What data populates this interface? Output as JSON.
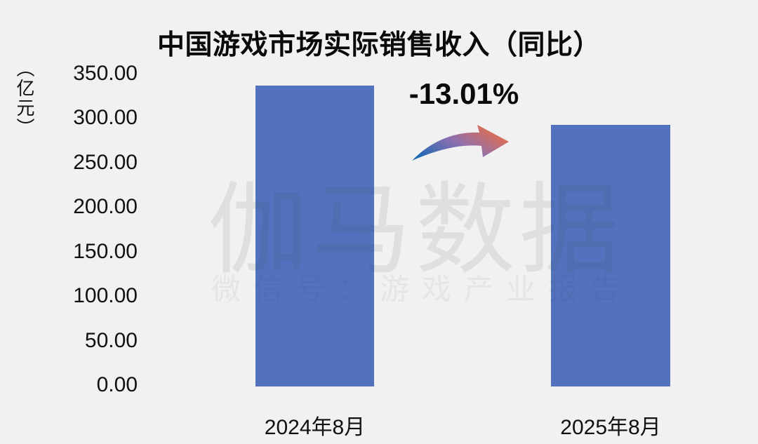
{
  "title": "中国游戏市场实际销售收入（同比）",
  "annotation": {
    "change_label": "-13.01%",
    "arrow_description": "curved swoosh arrow pointing down-right",
    "arrow_gradient": [
      "#1A69B4",
      "#8E6FB0",
      "#EE6E3E"
    ]
  },
  "watermark": {
    "brand": "伽马数据",
    "subtitle": "微信号：游戏产业报告"
  },
  "chart_data": {
    "type": "bar",
    "title": "中国游戏市场实际销售收入（同比）",
    "categories": [
      "2024年8月",
      "2025年8月"
    ],
    "values": [
      336.6,
      292.8
    ],
    "yoy_change_pct": "-13.01%",
    "ylabel": "（亿元）",
    "ylim": [
      0,
      350
    ],
    "ytick_step": 50,
    "yticks": [
      "350.00",
      "300.00",
      "250.00",
      "200.00",
      "150.00",
      "100.00",
      "50.00",
      "0.00"
    ],
    "bar_color": "#5272BD",
    "background_color": "#F1F1F2",
    "grid": false,
    "legend": false,
    "data_labels": false
  }
}
